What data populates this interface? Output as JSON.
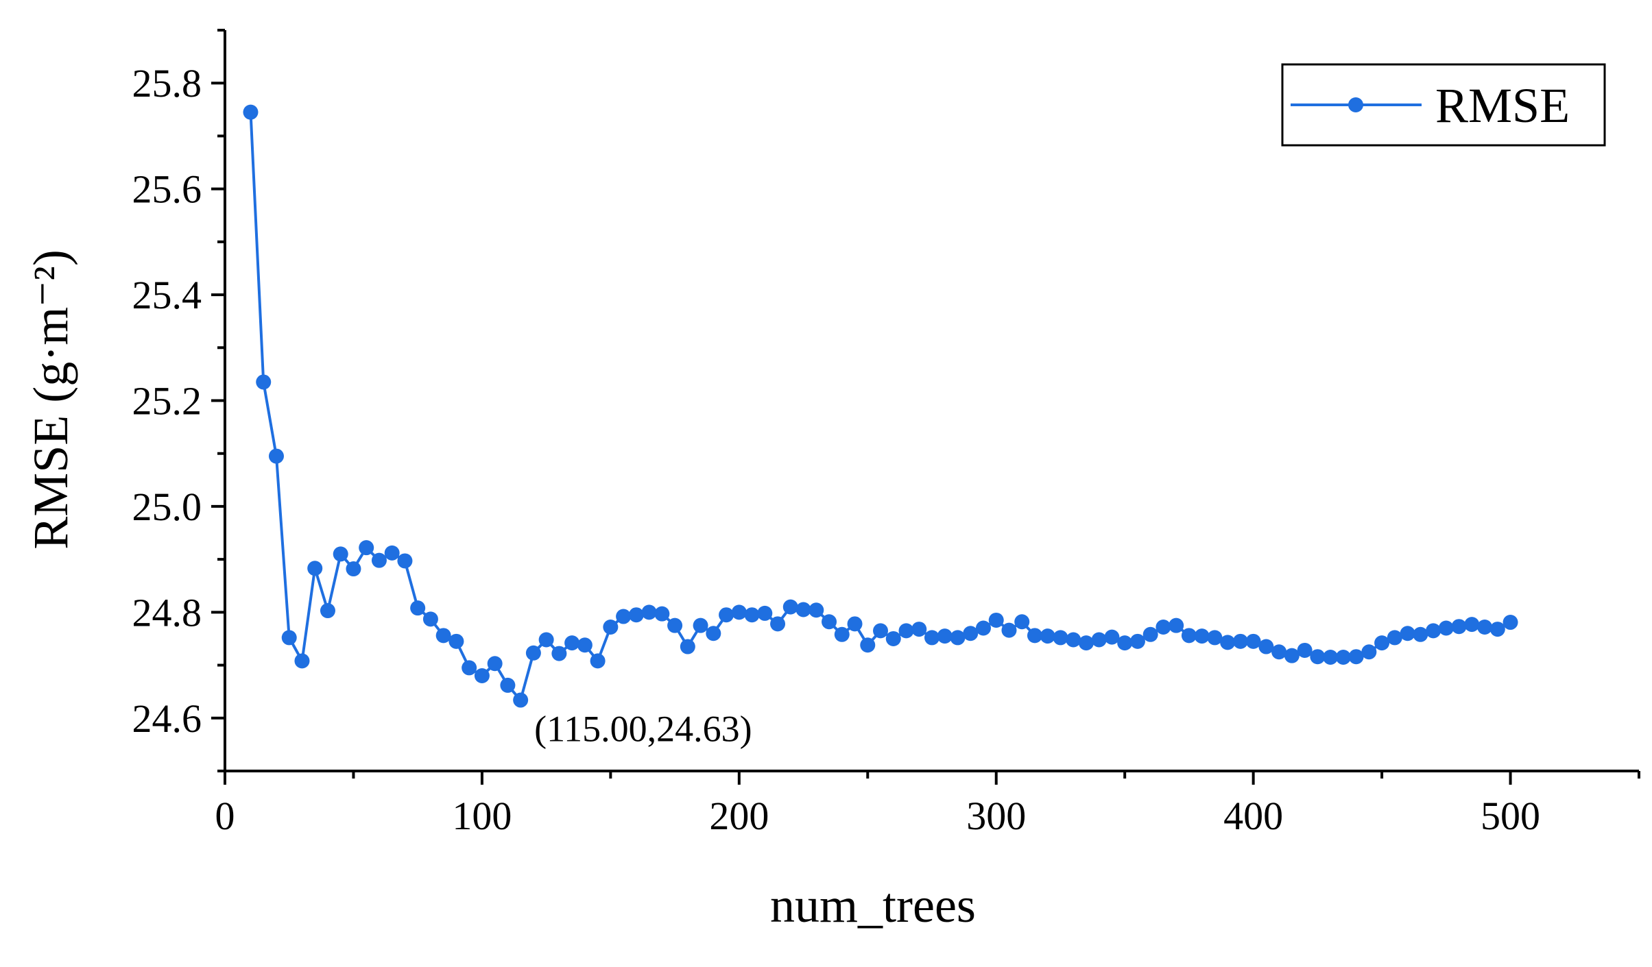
{
  "chart_data": {
    "type": "line",
    "xlabel": "num_trees",
    "ylabel": "RMSE (g·m⁻²)",
    "xlim": [
      0,
      550
    ],
    "ylim": [
      24.5,
      25.9
    ],
    "xticks": [
      0,
      100,
      200,
      300,
      400,
      500
    ],
    "xtick_labels": [
      "0",
      "100",
      "200",
      "300",
      "400",
      "500"
    ],
    "yticks": [
      24.6,
      24.8,
      25.0,
      25.2,
      25.4,
      25.6,
      25.8
    ],
    "ytick_labels": [
      "24.6",
      "24.8",
      "25.0",
      "25.2",
      "25.4",
      "25.6",
      "25.8"
    ],
    "legend_position": "top-right",
    "grid": false,
    "series": [
      {
        "name": "RMSE",
        "color": "#1f6fe0",
        "x": [
          10,
          15,
          20,
          25,
          30,
          35,
          40,
          45,
          50,
          55,
          60,
          65,
          70,
          75,
          80,
          85,
          90,
          95,
          100,
          105,
          110,
          115,
          120,
          125,
          130,
          135,
          140,
          145,
          150,
          155,
          160,
          165,
          170,
          175,
          180,
          185,
          190,
          195,
          200,
          205,
          210,
          215,
          220,
          225,
          230,
          235,
          240,
          245,
          250,
          255,
          260,
          265,
          270,
          275,
          280,
          285,
          290,
          295,
          300,
          305,
          310,
          315,
          320,
          325,
          330,
          335,
          340,
          345,
          350,
          355,
          360,
          365,
          370,
          375,
          380,
          385,
          390,
          395,
          400,
          405,
          410,
          415,
          420,
          425,
          430,
          435,
          440,
          445,
          450,
          455,
          460,
          465,
          470,
          475,
          480,
          485,
          490,
          495,
          500
        ],
        "y": [
          25.745,
          25.235,
          25.095,
          24.752,
          24.708,
          24.883,
          24.803,
          24.91,
          24.882,
          24.922,
          24.898,
          24.912,
          24.897,
          24.808,
          24.787,
          24.756,
          24.745,
          24.695,
          24.68,
          24.703,
          24.662,
          24.634,
          24.723,
          24.748,
          24.722,
          24.742,
          24.738,
          24.708,
          24.772,
          24.792,
          24.795,
          24.8,
          24.797,
          24.775,
          24.735,
          24.775,
          24.76,
          24.795,
          24.8,
          24.795,
          24.798,
          24.778,
          24.81,
          24.805,
          24.804,
          24.782,
          24.758,
          24.778,
          24.738,
          24.765,
          24.75,
          24.765,
          24.768,
          24.752,
          24.755,
          24.752,
          24.76,
          24.77,
          24.785,
          24.766,
          24.782,
          24.756,
          24.755,
          24.752,
          24.748,
          24.742,
          24.748,
          24.753,
          24.742,
          24.745,
          24.758,
          24.772,
          24.775,
          24.756,
          24.755,
          24.752,
          24.743,
          24.745,
          24.745,
          24.735,
          24.725,
          24.718,
          24.728,
          24.716,
          24.715,
          24.715,
          24.716,
          24.725,
          24.742,
          24.752,
          24.76,
          24.758,
          24.765,
          24.77,
          24.773,
          24.777,
          24.772,
          24.768,
          24.781
        ]
      }
    ],
    "annotations": [
      {
        "text": "(115.00,24.63)",
        "x": 115,
        "y": 24.634
      }
    ]
  }
}
